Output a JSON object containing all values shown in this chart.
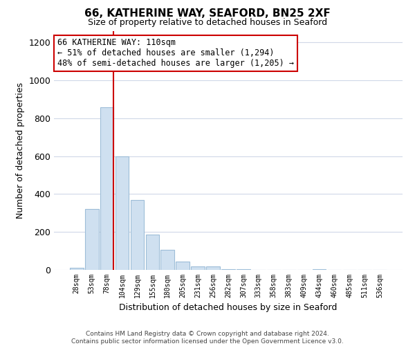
{
  "title": "66, KATHERINE WAY, SEAFORD, BN25 2XF",
  "subtitle": "Size of property relative to detached houses in Seaford",
  "xlabel": "Distribution of detached houses by size in Seaford",
  "ylabel": "Number of detached properties",
  "bar_labels": [
    "28sqm",
    "53sqm",
    "78sqm",
    "104sqm",
    "129sqm",
    "155sqm",
    "180sqm",
    "205sqm",
    "231sqm",
    "256sqm",
    "282sqm",
    "307sqm",
    "333sqm",
    "358sqm",
    "383sqm",
    "409sqm",
    "434sqm",
    "460sqm",
    "485sqm",
    "511sqm",
    "536sqm"
  ],
  "bar_values": [
    10,
    320,
    860,
    600,
    370,
    185,
    105,
    45,
    20,
    18,
    5,
    5,
    0,
    0,
    0,
    0,
    5,
    0,
    0,
    0,
    0
  ],
  "bar_color": "#cfe0f0",
  "bar_edge_color": "#9dbdd8",
  "vline_color": "#cc0000",
  "annotation_text": "66 KATHERINE WAY: 110sqm\n← 51% of detached houses are smaller (1,294)\n48% of semi-detached houses are larger (1,205) →",
  "annotation_box_facecolor": "#ffffff",
  "annotation_box_edgecolor": "#cc0000",
  "ylim": [
    0,
    1260
  ],
  "yticks": [
    0,
    200,
    400,
    600,
    800,
    1000,
    1200
  ],
  "footer_text": "Contains HM Land Registry data © Crown copyright and database right 2024.\nContains public sector information licensed under the Open Government Licence v3.0.",
  "background_color": "#ffffff",
  "grid_color": "#d0d8e8"
}
